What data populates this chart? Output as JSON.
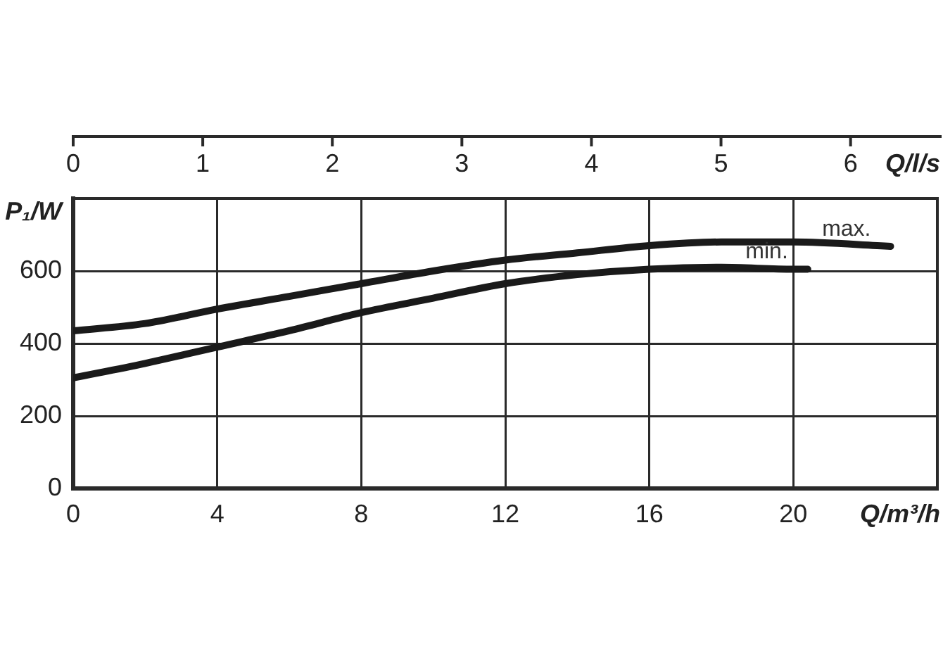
{
  "chart_data": {
    "type": "line",
    "xlabel": "Q/m³/h",
    "ylabel": "P₁/W",
    "x2label": "Q/l/s",
    "xlim": [
      0,
      24
    ],
    "xticks": [
      0,
      4,
      8,
      12,
      16,
      20
    ],
    "x2lim": [
      0,
      6.67
    ],
    "x2ticks": [
      0,
      1,
      2,
      3,
      4,
      5,
      6
    ],
    "ylim": [
      0,
      800
    ],
    "yticks": [
      0,
      200,
      400,
      600
    ],
    "series": [
      {
        "name": "max.",
        "color": "#1a1a1a",
        "x": [
          0,
          2,
          4,
          6,
          8,
          10,
          12,
          14,
          16,
          18,
          20,
          22.7
        ],
        "values": [
          435,
          455,
          495,
          530,
          565,
          600,
          630,
          650,
          670,
          680,
          680,
          668
        ]
      },
      {
        "name": "min.",
        "color": "#1a1a1a",
        "x": [
          0,
          2,
          4,
          6,
          8,
          10,
          12,
          14,
          16,
          18,
          20,
          20.4
        ],
        "values": [
          305,
          345,
          390,
          435,
          485,
          525,
          565,
          590,
          605,
          610,
          605,
          605
        ]
      }
    ],
    "grid": true,
    "legend": false,
    "marker": "none",
    "line_style": "solid"
  }
}
